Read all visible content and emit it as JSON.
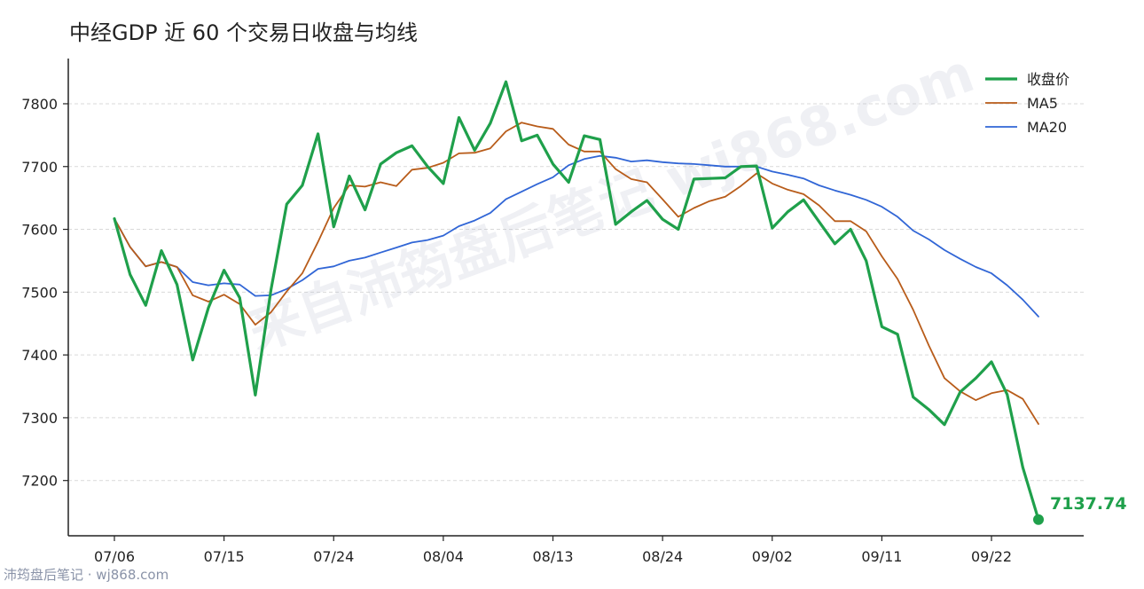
{
  "chart_data": {
    "type": "line",
    "title": "中经GDP 近 60 个交易日收盘与均线",
    "xlabel": "",
    "ylabel": "",
    "ylim": [
      7112,
      7872
    ],
    "yticks": [
      7200,
      7300,
      7400,
      7500,
      7600,
      7700,
      7800
    ],
    "xtick_labels": [
      "07/06",
      "07/15",
      "07/24",
      "08/04",
      "08/13",
      "08/24",
      "09/02",
      "09/11",
      "09/22"
    ],
    "xtick_positions": [
      0,
      7,
      14,
      21,
      28,
      35,
      42,
      49,
      56
    ],
    "grid": "horizontal dashed",
    "legend": "top-right",
    "last_value_label": "7137.74",
    "colors": {
      "close": "#1fa04b",
      "ma5": "#b85c1a",
      "ma20": "#3166d6"
    },
    "series": [
      {
        "name": "收盘价",
        "values": [
          7617,
          7528,
          7479,
          7566,
          7512,
          7392,
          7475,
          7535,
          7491,
          7336,
          7504,
          7640,
          7670,
          7752,
          7604,
          7685,
          7631,
          7704,
          7722,
          7733,
          7700,
          7673,
          7778,
          7726,
          7769,
          7835,
          7741,
          7750,
          7704,
          7675,
          7749,
          7743,
          7608,
          7628,
          7646,
          7616,
          7600,
          7680,
          7681,
          7682,
          7700,
          7701,
          7602,
          7628,
          7647,
          7612,
          7577,
          7600,
          7550,
          7445,
          7433,
          7333,
          7313,
          7289,
          7341,
          7363,
          7389,
          7337,
          7221,
          7137.74
        ]
      },
      {
        "name": "MA5",
        "values": [
          7617,
          7572,
          7541,
          7548,
          7540,
          7495,
          7485,
          7496,
          7481,
          7448,
          7468,
          7501,
          7530,
          7580,
          7634,
          7670,
          7668,
          7675,
          7669,
          7695,
          7698,
          7706,
          7721,
          7722,
          7729,
          7756,
          7770,
          7764,
          7760,
          7735,
          7724,
          7724,
          7696,
          7680,
          7675,
          7648,
          7620,
          7634,
          7645,
          7652,
          7669,
          7689,
          7673,
          7663,
          7656,
          7638,
          7613,
          7613,
          7597,
          7557,
          7521,
          7472,
          7415,
          7363,
          7342,
          7328,
          7339,
          7344,
          7330,
          7290
        ]
      },
      {
        "name": "MA20",
        "values": [
          7617,
          7572,
          7541,
          7548,
          7540,
          7516,
          7511,
          7514,
          7512,
          7494,
          7495,
          7505,
          7519,
          7537,
          7541,
          7550,
          7555,
          7563,
          7571,
          7579,
          7583,
          7590,
          7605,
          7614,
          7626,
          7648,
          7660,
          7672,
          7683,
          7702,
          7712,
          7717,
          7714,
          7708,
          7710,
          7707,
          7705,
          7704,
          7702,
          7700,
          7700,
          7700,
          7692,
          7687,
          7681,
          7670,
          7662,
          7655,
          7647,
          7636,
          7620,
          7598,
          7584,
          7567,
          7553,
          7540,
          7530,
          7511,
          7488,
          7461
        ]
      }
    ]
  },
  "watermark": "来自沛筠盘后笔记 wj868.com",
  "footer": "沛筠盘后笔记 · wj868.com"
}
